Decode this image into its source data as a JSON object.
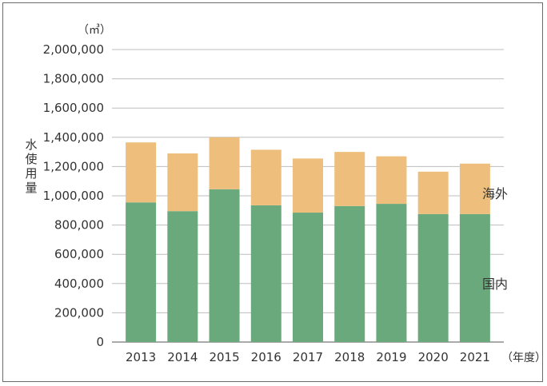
{
  "chart_data": {
    "type": "bar",
    "stacked": true,
    "categories": [
      "2013",
      "2014",
      "2015",
      "2016",
      "2017",
      "2018",
      "2019",
      "2020",
      "2021"
    ],
    "series": [
      {
        "name": "国内",
        "values": [
          955000,
          895000,
          1045000,
          935000,
          885000,
          930000,
          945000,
          875000,
          875000
        ]
      },
      {
        "name": "海外",
        "values": [
          410000,
          395000,
          355000,
          380000,
          370000,
          370000,
          325000,
          290000,
          345000
        ]
      }
    ],
    "ylim": [
      0,
      2000000
    ],
    "yticks": [
      0,
      200000,
      400000,
      600000,
      800000,
      1000000,
      1200000,
      1400000,
      1600000,
      1800000,
      2000000
    ],
    "ytick_labels": [
      "0",
      "200,000",
      "400,000",
      "600,000",
      "800,000",
      "1,000,000",
      "1,200,000",
      "1,400,000",
      "1,600,000",
      "1,800,000",
      "2,000,000"
    ],
    "ylabel": "水使用量",
    "yunit": "（㎥）",
    "xunit": "（年度）",
    "grid": true,
    "legend": "inline-right",
    "colors": {
      "domestic": "#6aa97c",
      "overseas": "#eebf7c",
      "grid": "#bdbdbd",
      "axis": "#555555"
    }
  }
}
